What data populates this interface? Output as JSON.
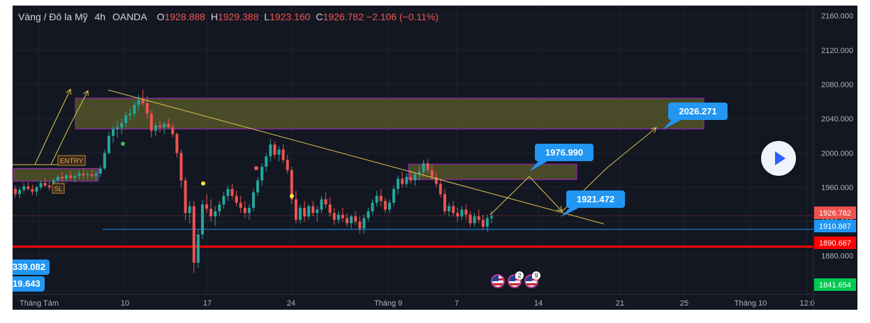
{
  "header": {
    "symbol": "Vàng / Đô la Mỹ",
    "interval": "4h",
    "source": "OANDA",
    "open_label": "O",
    "open_value": "1928.888",
    "high_label": "H",
    "high_value": "1929.388",
    "low_label": "L",
    "low_value": "1923.160",
    "close_label": "C",
    "close_value": "1926.782",
    "change": "−2.106 (−0.11%)"
  },
  "left_labels": {
    "upper": "339.082",
    "lower": "19.643"
  },
  "events": {
    "count_a": "2",
    "count_b": "9"
  },
  "colors": {
    "up": "#26a69a",
    "down": "#ef5350",
    "background": "#131722",
    "zone": "#8c8a2e",
    "zone_border": "#a020d0",
    "trendline": "#e2c64a",
    "support": "#2196f3",
    "resistance_line": "#ff0000",
    "callout": "#2196f3"
  },
  "chart_data": {
    "type": "candlestick",
    "x_tick_labels": [
      "Tháng Tám",
      "10",
      "17",
      "24",
      "Tháng 9",
      "7",
      "14",
      "21",
      "25",
      "Tháng 10",
      "12:0"
    ],
    "y_tick_labels": [
      "2160.000",
      "2120.000",
      "2080.000",
      "2040.000",
      "2000.000",
      "1960.000",
      "1920.000",
      "1880.000"
    ],
    "ylim": [
      1835,
      2172
    ],
    "last_price": "1926.782",
    "price_badges": [
      {
        "value": 1926.782,
        "text": "1926.782",
        "color": "#ef5350"
      },
      {
        "value": 1910.867,
        "text": "1910.867",
        "color": "#2196f3"
      },
      {
        "value": 1890.667,
        "text": "1890.667",
        "color": "#ff0000"
      },
      {
        "value": 1841.654,
        "text": "1841.654",
        "color": "#00c853"
      }
    ],
    "callouts": [
      {
        "text": "1976.990",
        "value": 1976.99
      },
      {
        "text": "1921.472",
        "value": 1921.472
      },
      {
        "text": "2026.271",
        "value": 2026.271
      }
    ],
    "trade_labels": {
      "entry": "ENTRY",
      "sl": "SL"
    },
    "zones": [
      {
        "name": "resistance-zone-upper",
        "top": 2064,
        "bottom": 2028
      },
      {
        "name": "resistance-zone-mid",
        "top": 1987,
        "bottom": 1969
      },
      {
        "name": "entry-zone-left",
        "top": 1982,
        "bottom": 1967
      }
    ],
    "lines": {
      "support": 1910.867,
      "strong_support": 1890.667
    },
    "candles": [
      [
        1958,
        1962,
        1948,
        1952
      ],
      [
        1952,
        1960,
        1947,
        1957
      ],
      [
        1957,
        1965,
        1953,
        1961
      ],
      [
        1961,
        1966,
        1956,
        1958
      ],
      [
        1958,
        1963,
        1951,
        1955
      ],
      [
        1955,
        1962,
        1950,
        1960
      ],
      [
        1960,
        1968,
        1957,
        1965
      ],
      [
        1965,
        1971,
        1960,
        1962
      ],
      [
        1962,
        1967,
        1956,
        1960
      ],
      [
        1960,
        1970,
        1958,
        1968
      ],
      [
        1968,
        1975,
        1964,
        1972
      ],
      [
        1972,
        1978,
        1966,
        1970
      ],
      [
        1970,
        1976,
        1966,
        1974
      ],
      [
        1974,
        1979,
        1968,
        1971
      ],
      [
        1971,
        1977,
        1966,
        1973
      ],
      [
        1973,
        1980,
        1969,
        1976
      ],
      [
        1976,
        1982,
        1970,
        1974
      ],
      [
        1974,
        1979,
        1969,
        1975
      ],
      [
        1975,
        1981,
        1971,
        1973
      ],
      [
        1973,
        1979,
        1968,
        1976
      ],
      [
        1976,
        1985,
        1972,
        1982
      ],
      [
        1982,
        2004,
        1980,
        2000
      ],
      [
        2000,
        2025,
        1998,
        2020
      ],
      [
        2020,
        2032,
        2012,
        2028
      ],
      [
        2028,
        2038,
        2018,
        2030
      ],
      [
        2030,
        2040,
        2022,
        2035
      ],
      [
        2035,
        2048,
        2030,
        2044
      ],
      [
        2044,
        2052,
        2038,
        2046
      ],
      [
        2046,
        2060,
        2042,
        2056
      ],
      [
        2056,
        2068,
        2050,
        2062
      ],
      [
        2062,
        2074,
        2055,
        2058
      ],
      [
        2058,
        2066,
        2040,
        2046
      ],
      [
        2046,
        2050,
        2018,
        2026
      ],
      [
        2026,
        2036,
        2020,
        2032
      ],
      [
        2032,
        2038,
        2024,
        2030
      ],
      [
        2030,
        2036,
        2022,
        2034
      ],
      [
        2034,
        2040,
        2028,
        2030
      ],
      [
        2030,
        2034,
        2018,
        2022
      ],
      [
        2022,
        2024,
        1995,
        2000
      ],
      [
        2000,
        2004,
        1960,
        1968
      ],
      [
        1968,
        1972,
        1922,
        1930
      ],
      [
        1930,
        1944,
        1918,
        1938
      ],
      [
        1938,
        1944,
        1860,
        1872
      ],
      [
        1872,
        1910,
        1866,
        1905
      ],
      [
        1905,
        1945,
        1900,
        1940
      ],
      [
        1940,
        1952,
        1930,
        1935
      ],
      [
        1935,
        1946,
        1920,
        1926
      ],
      [
        1926,
        1938,
        1915,
        1932
      ],
      [
        1932,
        1944,
        1926,
        1940
      ],
      [
        1940,
        1955,
        1935,
        1950
      ],
      [
        1950,
        1962,
        1944,
        1958
      ],
      [
        1958,
        1964,
        1946,
        1950
      ],
      [
        1950,
        1956,
        1938,
        1942
      ],
      [
        1942,
        1950,
        1930,
        1936
      ],
      [
        1936,
        1944,
        1924,
        1930
      ],
      [
        1930,
        1940,
        1922,
        1936
      ],
      [
        1936,
        1958,
        1932,
        1954
      ],
      [
        1954,
        1972,
        1950,
        1968
      ],
      [
        1968,
        1988,
        1962,
        1984
      ],
      [
        1984,
        2000,
        1978,
        1996
      ],
      [
        1996,
        2016,
        1990,
        2010
      ],
      [
        2010,
        2014,
        1994,
        1998
      ],
      [
        1998,
        2008,
        1990,
        2004
      ],
      [
        2004,
        2010,
        1988,
        1992
      ],
      [
        1992,
        1998,
        1976,
        1980
      ],
      [
        1980,
        1984,
        1940,
        1946
      ],
      [
        1946,
        1956,
        1918,
        1922
      ],
      [
        1922,
        1940,
        1918,
        1936
      ],
      [
        1936,
        1944,
        1920,
        1926
      ],
      [
        1926,
        1940,
        1922,
        1938
      ],
      [
        1938,
        1944,
        1926,
        1930
      ],
      [
        1930,
        1938,
        1920,
        1934
      ],
      [
        1934,
        1950,
        1930,
        1946
      ],
      [
        1946,
        1954,
        1936,
        1940
      ],
      [
        1940,
        1948,
        1926,
        1930
      ],
      [
        1930,
        1936,
        1916,
        1922
      ],
      [
        1922,
        1932,
        1918,
        1928
      ],
      [
        1928,
        1936,
        1920,
        1924
      ],
      [
        1924,
        1930,
        1914,
        1918
      ],
      [
        1918,
        1928,
        1912,
        1926
      ],
      [
        1926,
        1932,
        1916,
        1920
      ],
      [
        1920,
        1926,
        1906,
        1912
      ],
      [
        1912,
        1928,
        1906,
        1924
      ],
      [
        1924,
        1936,
        1920,
        1932
      ],
      [
        1932,
        1946,
        1928,
        1942
      ],
      [
        1942,
        1956,
        1938,
        1950
      ],
      [
        1950,
        1958,
        1938,
        1944
      ],
      [
        1944,
        1948,
        1930,
        1934
      ],
      [
        1934,
        1946,
        1930,
        1942
      ],
      [
        1942,
        1962,
        1938,
        1958
      ],
      [
        1958,
        1974,
        1952,
        1970
      ],
      [
        1970,
        1978,
        1960,
        1964
      ],
      [
        1964,
        1976,
        1960,
        1972
      ],
      [
        1972,
        1980,
        1964,
        1968
      ],
      [
        1968,
        1978,
        1962,
        1975
      ],
      [
        1975,
        1985,
        1968,
        1978
      ],
      [
        1978,
        1992,
        1972,
        1988
      ],
      [
        1988,
        1993,
        1976,
        1980
      ],
      [
        1980,
        1986,
        1968,
        1972
      ],
      [
        1972,
        1978,
        1960,
        1964
      ],
      [
        1964,
        1970,
        1948,
        1952
      ],
      [
        1952,
        1958,
        1928,
        1932
      ],
      [
        1932,
        1942,
        1926,
        1938
      ],
      [
        1938,
        1944,
        1926,
        1930
      ],
      [
        1930,
        1936,
        1920,
        1926
      ],
      [
        1926,
        1938,
        1922,
        1934
      ],
      [
        1934,
        1940,
        1922,
        1928
      ],
      [
        1928,
        1932,
        1914,
        1918
      ],
      [
        1918,
        1930,
        1914,
        1926
      ],
      [
        1926,
        1934,
        1918,
        1922
      ],
      [
        1922,
        1928,
        1910,
        1914
      ],
      [
        1914,
        1928,
        1908,
        1924
      ],
      [
        1924,
        1932,
        1918,
        1926
      ]
    ]
  }
}
